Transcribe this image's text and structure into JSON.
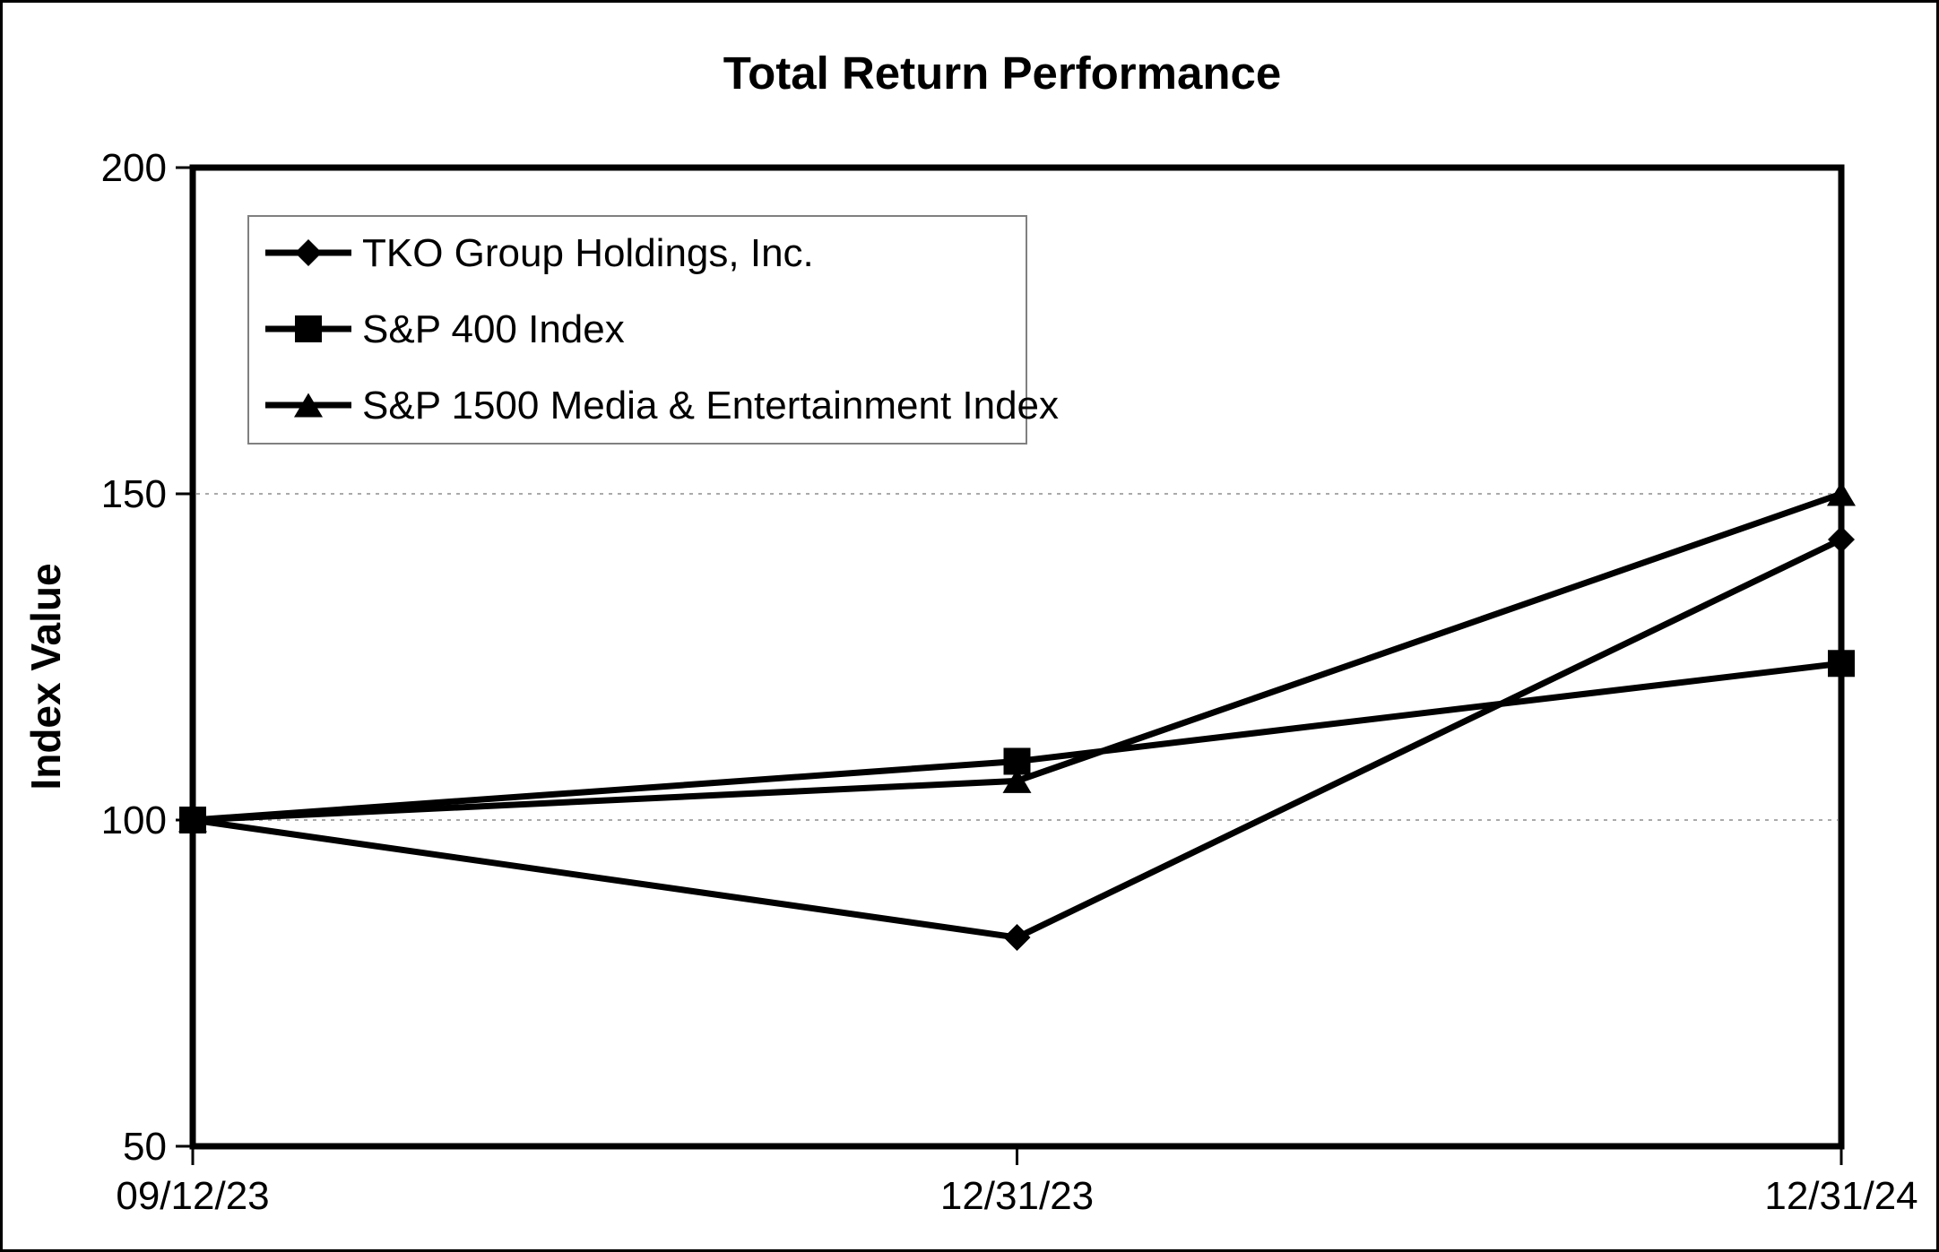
{
  "chart_data": {
    "type": "line",
    "title": "Total Return Performance",
    "ylabel": "Index Value",
    "categories": [
      "09/12/23",
      "12/31/23",
      "12/31/24"
    ],
    "series": [
      {
        "name": "TKO Group Holdings, Inc.",
        "marker": "diamond",
        "values": [
          100,
          82,
          143
        ]
      },
      {
        "name": "S&P 400 Index",
        "marker": "square",
        "values": [
          100,
          109,
          124
        ]
      },
      {
        "name": "S&P 1500 Media & Entertainment Index",
        "marker": "triangle",
        "values": [
          100,
          106,
          150
        ]
      }
    ],
    "ylim": [
      50,
      200
    ],
    "yticks": [
      200,
      150,
      100,
      50
    ],
    "gridline_values": [
      150,
      100
    ],
    "grid": "horizontal-dotted",
    "legend_position": "top-left-inside",
    "line_color": "#000000",
    "grid_color": "#aaaaaa",
    "legend_border_color": "#808080",
    "axis_color": "#000000",
    "background_color": "#ffffff"
  }
}
